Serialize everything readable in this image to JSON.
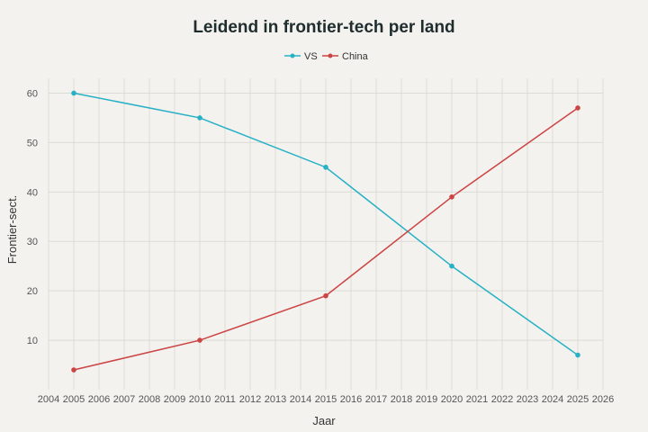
{
  "chart_data": {
    "type": "line",
    "title": "Leidend in frontier-tech per land",
    "xlabel": "Jaar",
    "ylabel": "Frontier-sect.",
    "xlim": [
      2004,
      2026
    ],
    "ylim": [
      0,
      63
    ],
    "x_ticks": [
      2004,
      2005,
      2006,
      2007,
      2008,
      2009,
      2010,
      2011,
      2012,
      2013,
      2014,
      2015,
      2016,
      2017,
      2018,
      2019,
      2020,
      2021,
      2022,
      2023,
      2024,
      2025,
      2026
    ],
    "y_ticks": [
      10,
      20,
      30,
      40,
      50,
      60
    ],
    "grid": true,
    "legend_position": "top-center",
    "x": [
      2005,
      2010,
      2015,
      2020,
      2025
    ],
    "series": [
      {
        "name": "VS",
        "color": "#27b1c6",
        "values": [
          60,
          55,
          45,
          25,
          7
        ]
      },
      {
        "name": "China",
        "color": "#cc4444",
        "values": [
          4,
          10,
          19,
          39,
          57
        ]
      }
    ]
  }
}
